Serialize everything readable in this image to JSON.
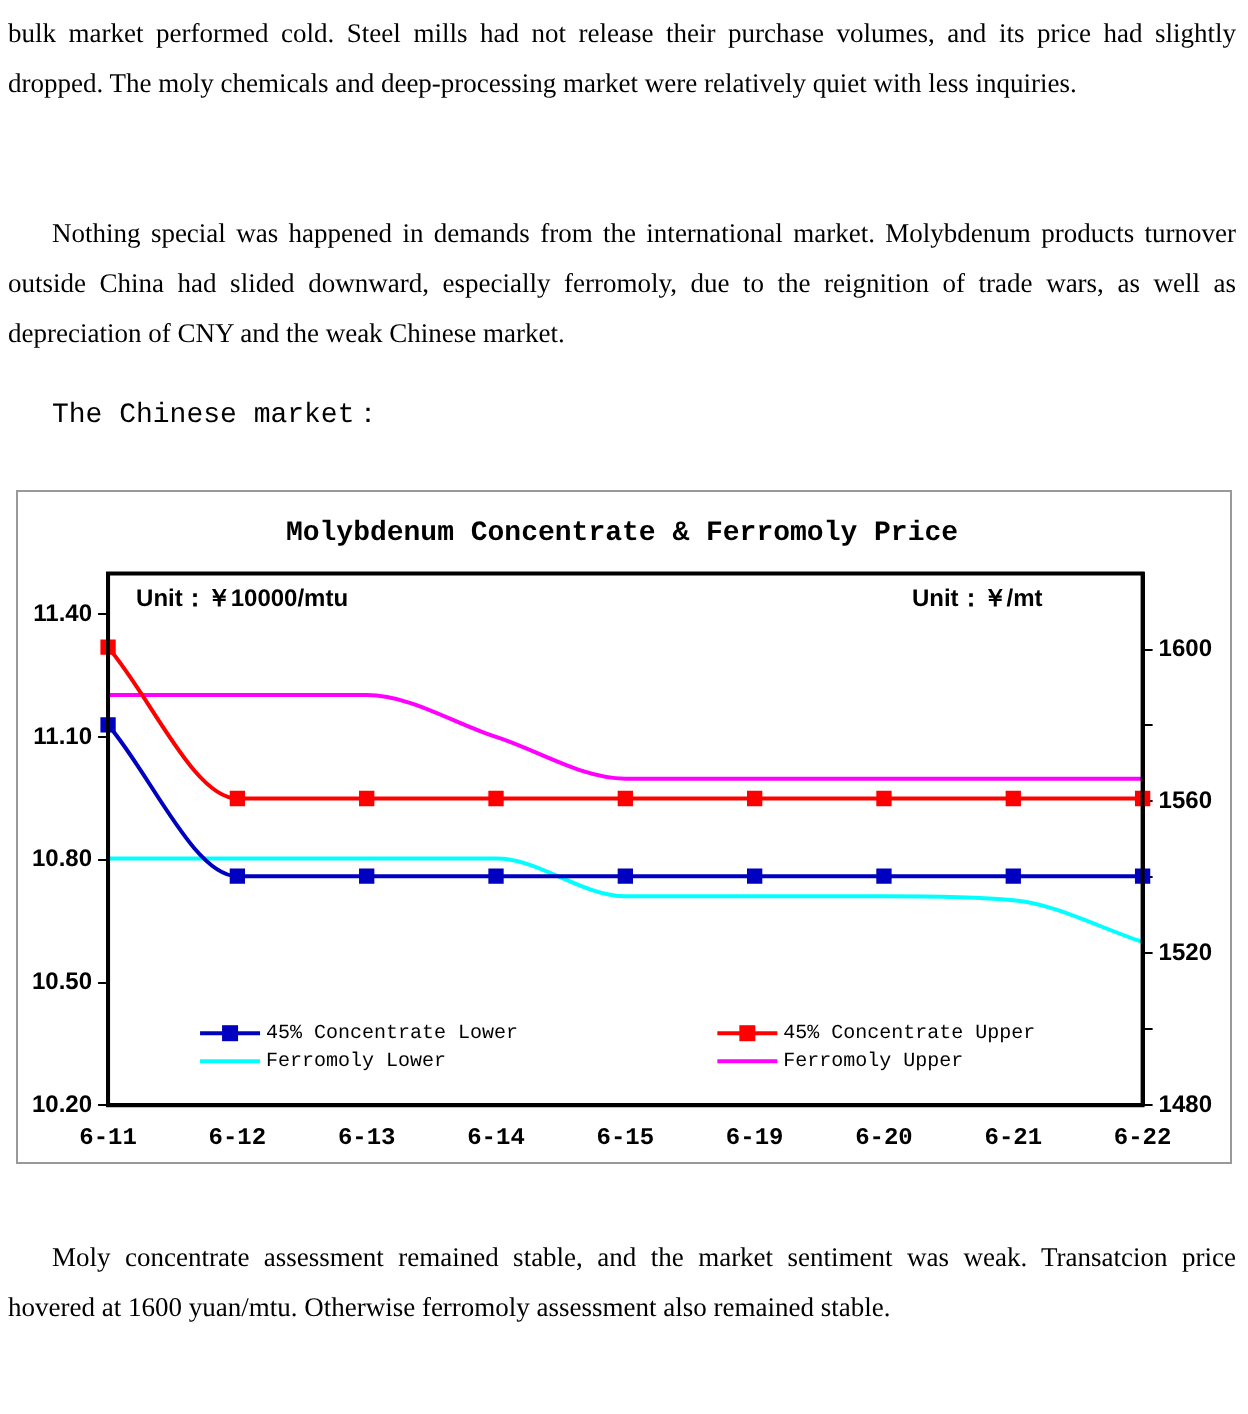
{
  "chart_data": {
    "type": "line",
    "title": "Molybdenum Concentrate & Ferromoly Price",
    "ylabel": "Unit：￥10000/mtu",
    "y2label": "Unit：￥/mt",
    "annotations": [
      "bulk market performed cold. Steel mills had not release their purchase volumes, and its price had slightly dropped. The moly chemicals and deep-processing market were relatively quiet with less inquiries.",
      "Nothing special was happened in demands from the international market. Molybdenum products turnover outside China had slided downward, especially ferromoly, due to the reignition of trade wars, as well as depreciation of CNY and the weak Chinese market.",
      "The Chinese market：",
      "Moly concentrate assessment remained stable, and the market sentiment was weak. Transatcion price hovered at 1600 yuan/mtu. Otherwise ferromoly assessment also remained stable."
    ],
    "categories": [
      "6-11",
      "6-12",
      "6-13",
      "6-14",
      "6-15",
      "6-19",
      "6-20",
      "6-21",
      "6-22"
    ],
    "series": [
      {
        "name": "45% Concentrate Lower",
        "color": "#0000c0",
        "marker": "square",
        "values": [
          11.13,
          10.76,
          10.76,
          10.76,
          10.76,
          10.76,
          10.76,
          10.76,
          10.76
        ]
      },
      {
        "name": "45% Concentrate Upper",
        "color": "#ff0000",
        "marker": "square",
        "values": [
          11.32,
          10.95,
          10.95,
          10.95,
          10.95,
          10.95,
          10.95,
          10.95,
          10.95
        ]
      },
      {
        "name": "Ferromoly Lower",
        "color": "#00ffff",
        "marker": "none",
        "axis": "y2",
        "values": [
          1545,
          1545,
          1545,
          1545,
          1535,
          1535,
          1535,
          1534,
          1523
        ]
      },
      {
        "name": "Ferromoly Upper",
        "color": "#ff00ff",
        "marker": "none",
        "axis": "y2",
        "values": [
          1588,
          1588,
          1588,
          1577,
          1566,
          1566,
          1566,
          1566,
          1566
        ]
      }
    ],
    "ylim": [
      10.2,
      11.5
    ],
    "yticks": [
      {
        "value": 10.2,
        "label": "10.20"
      },
      {
        "value": 10.5,
        "label": "10.50"
      },
      {
        "value": 10.8,
        "label": "10.80"
      },
      {
        "value": 11.1,
        "label": "11.10"
      },
      {
        "value": 11.4,
        "label": "11.40"
      }
    ],
    "y2lim": [
      1480,
      1620
    ],
    "y2ticks": [
      1480,
      {
        "value": 1500,
        "label": null
      },
      1520,
      {
        "value": 1540,
        "label": null
      },
      1560,
      {
        "value": 1580,
        "label": null
      },
      1600
    ],
    "grid": false,
    "legend": "bottom",
    "line_style": "solid"
  }
}
